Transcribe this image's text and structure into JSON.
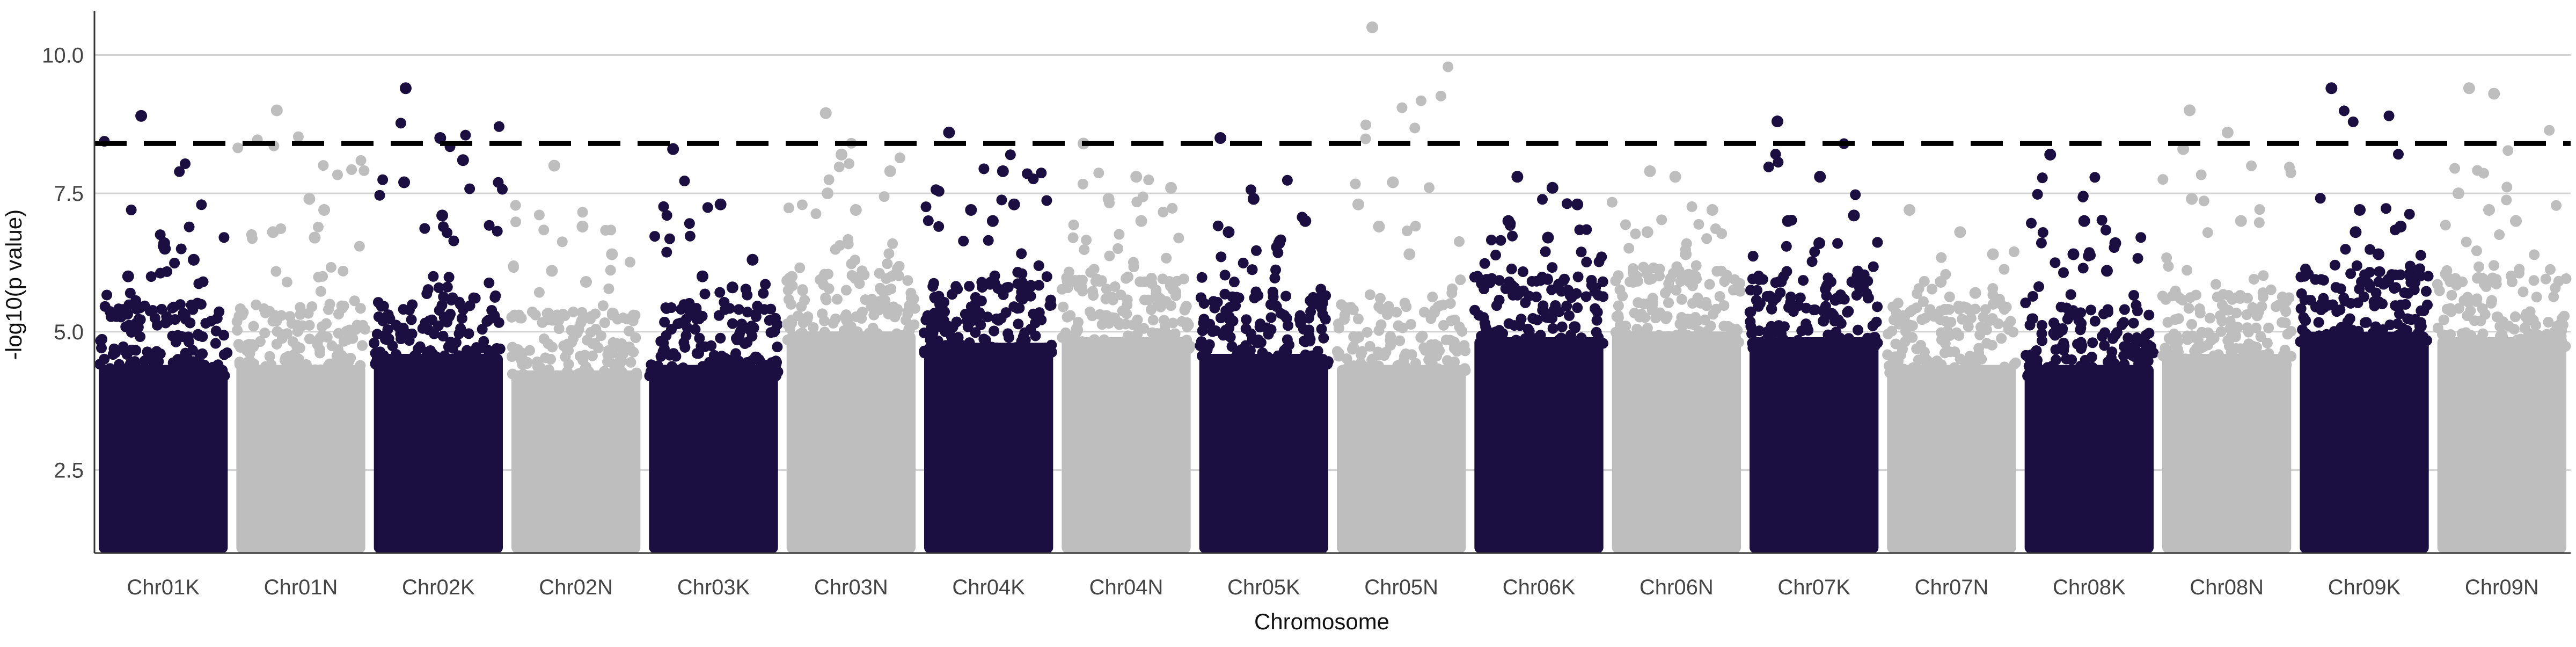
{
  "chart_data": {
    "type": "scatter",
    "title": "",
    "xlabel": "Chromosome",
    "ylabel": "-log10(p value)",
    "ylim": [
      1.0,
      10.8
    ],
    "yticks": [
      2.5,
      5.0,
      7.5,
      10.0
    ],
    "grid": "horizontal major lines",
    "legend": "none",
    "threshold": 8.4,
    "colors": {
      "K": "#1b0f42",
      "N": "#bebebe",
      "grid": "#d3d3d3",
      "threshold": "#000000",
      "axis": "#333333"
    },
    "categories": [
      "Chr01K",
      "Chr01N",
      "Chr02K",
      "Chr02N",
      "Chr03K",
      "Chr03N",
      "Chr04K",
      "Chr04N",
      "Chr05K",
      "Chr05N",
      "Chr06K",
      "Chr06N",
      "Chr07K",
      "Chr07N",
      "Chr08K",
      "Chr08N",
      "Chr09K",
      "Chr09N"
    ],
    "series": [
      {
        "chromosome": "Chr01K",
        "bulk_top": 5.0,
        "max": 8.9,
        "top_points": [
          8.9,
          6.5,
          6.3,
          6.0,
          6.6
        ]
      },
      {
        "chromosome": "Chr01N",
        "bulk_top": 5.0,
        "max": 9.0,
        "top_points": [
          9.0,
          7.4,
          7.2,
          6.8,
          6.7
        ]
      },
      {
        "chromosome": "Chr02K",
        "bulk_top": 5.2,
        "max": 9.4,
        "top_points": [
          9.4,
          8.5,
          8.1,
          7.7,
          7.1
        ]
      },
      {
        "chromosome": "Chr02N",
        "bulk_top": 4.9,
        "max": 8.0,
        "top_points": [
          8.0,
          6.9,
          6.4,
          6.1,
          5.9
        ]
      },
      {
        "chromosome": "Chr03K",
        "bulk_top": 5.0,
        "max": 8.3,
        "top_points": [
          8.3,
          7.3,
          6.3,
          6.0,
          5.8
        ]
      },
      {
        "chromosome": "Chr03N",
        "bulk_top": 5.6,
        "max": 8.95,
        "top_points": [
          8.95,
          8.2,
          7.9,
          7.5,
          7.2
        ]
      },
      {
        "chromosome": "Chr04K",
        "bulk_top": 5.4,
        "max": 8.6,
        "top_points": [
          8.6,
          7.9,
          7.3,
          7.2,
          7.0
        ]
      },
      {
        "chromosome": "Chr04N",
        "bulk_top": 5.5,
        "max": 8.4,
        "top_points": [
          8.4,
          7.8,
          7.6,
          7.4,
          7.0
        ]
      },
      {
        "chromosome": "Chr05K",
        "bulk_top": 5.2,
        "max": 8.5,
        "top_points": [
          8.5,
          7.4,
          7.0,
          6.8,
          6.6
        ]
      },
      {
        "chromosome": "Chr05N",
        "bulk_top": 5.0,
        "max": 10.5,
        "top_points": [
          10.5,
          7.7,
          7.3,
          6.9,
          6.4
        ]
      },
      {
        "chromosome": "Chr06K",
        "bulk_top": 5.5,
        "max": 7.8,
        "top_points": [
          7.8,
          7.6,
          7.3,
          7.0,
          6.7
        ]
      },
      {
        "chromosome": "Chr06N",
        "bulk_top": 5.6,
        "max": 7.9,
        "top_points": [
          7.9,
          7.8,
          7.2,
          6.8,
          6.4
        ]
      },
      {
        "chromosome": "Chr07K",
        "bulk_top": 5.5,
        "max": 8.8,
        "top_points": [
          8.8,
          7.8,
          7.1,
          7.0,
          6.6
        ]
      },
      {
        "chromosome": "Chr07N",
        "bulk_top": 5.0,
        "max": 7.2,
        "top_points": [
          7.2,
          6.8,
          6.4,
          5.9,
          5.7
        ]
      },
      {
        "chromosome": "Chr08K",
        "bulk_top": 5.0,
        "max": 8.2,
        "top_points": [
          8.2,
          7.0,
          6.6,
          6.4,
          6.1
        ]
      },
      {
        "chromosome": "Chr08N",
        "bulk_top": 5.2,
        "max": 9.0,
        "top_points": [
          9.0,
          8.6,
          8.3,
          7.4,
          7.0
        ]
      },
      {
        "chromosome": "Chr09K",
        "bulk_top": 5.6,
        "max": 9.4,
        "top_points": [
          9.4,
          7.2,
          6.9,
          6.8,
          6.4
        ]
      },
      {
        "chromosome": "Chr09N",
        "bulk_top": 5.5,
        "max": 9.4,
        "top_points": [
          9.4,
          9.3,
          7.5,
          7.2,
          7.0
        ]
      }
    ]
  }
}
